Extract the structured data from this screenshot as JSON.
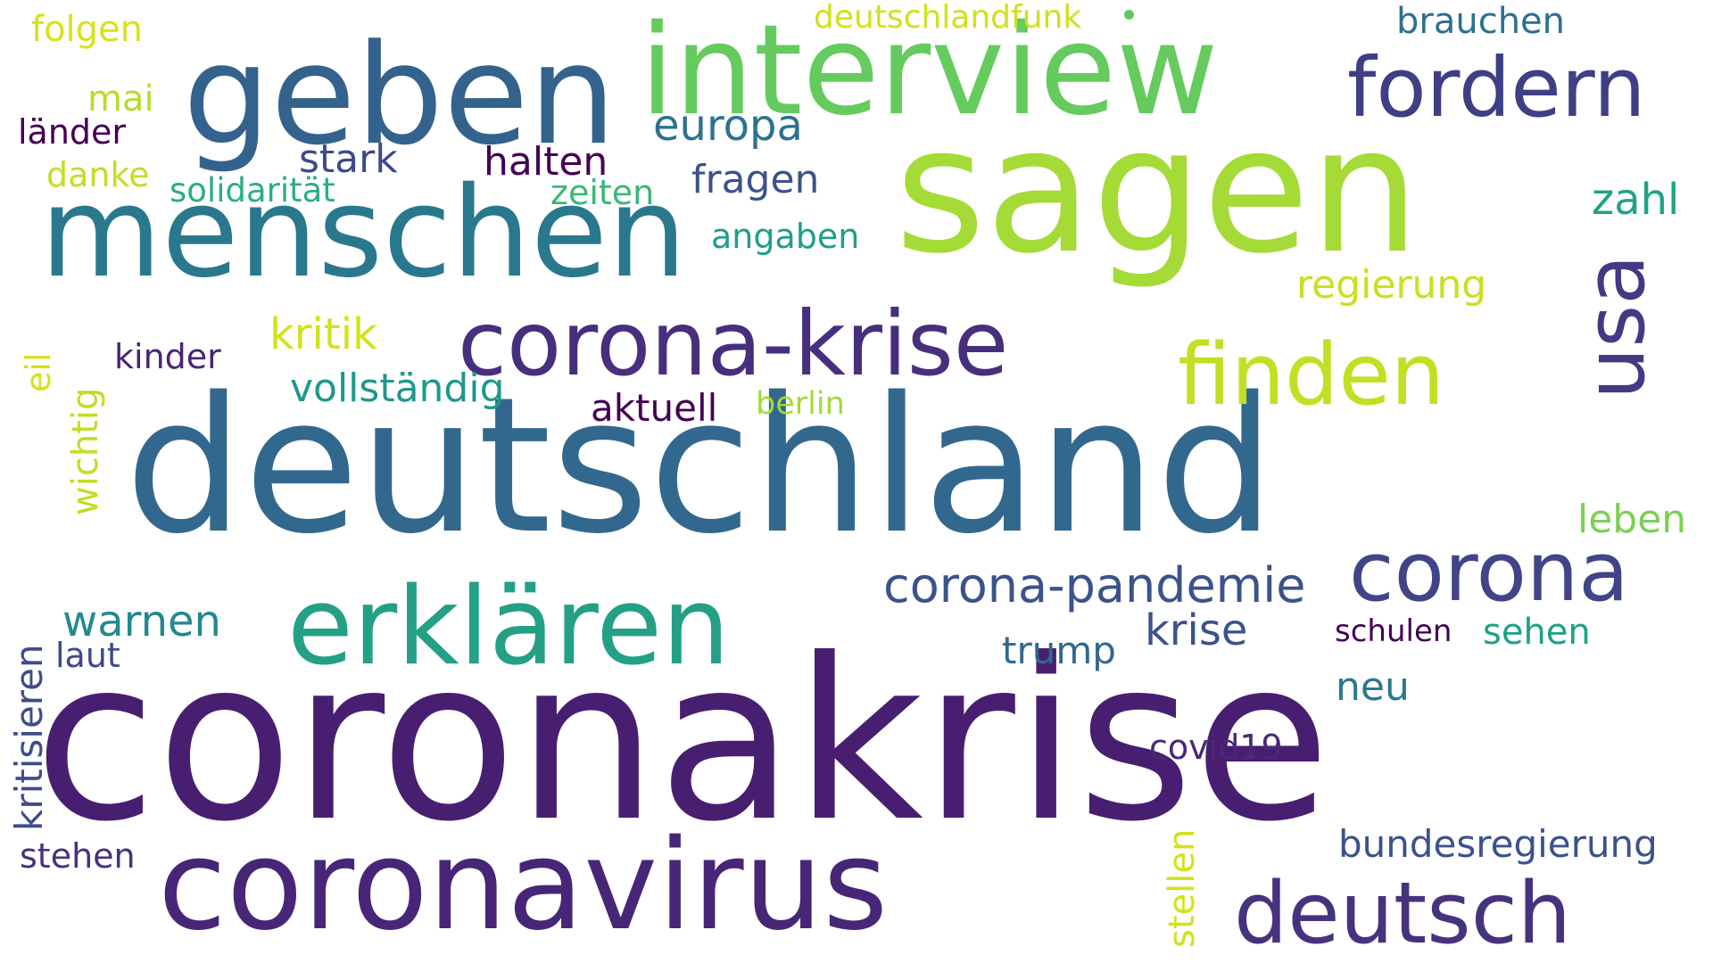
{
  "words": [
    {
      "text": "coronakrise",
      "color": "#481f70"
    },
    {
      "text": "deutschland",
      "color": "#32688e"
    },
    {
      "text": "sagen",
      "color": "#a5db36"
    },
    {
      "text": "geben",
      "color": "#33628d"
    },
    {
      "text": "interview",
      "color": "#65cb5e"
    },
    {
      "text": "menschen",
      "color": "#2a788e"
    },
    {
      "text": "coronavirus",
      "color": "#482677"
    },
    {
      "text": "erklären",
      "color": "#23a085"
    },
    {
      "text": "corona-krise",
      "color": "#472f7d"
    },
    {
      "text": "fordern",
      "color": "#3f3f84"
    },
    {
      "text": "finden",
      "color": "#c2df23"
    },
    {
      "text": "deutsch",
      "color": "#46337e"
    },
    {
      "text": "corona",
      "color": "#414487"
    },
    {
      "text": "usa",
      "color": "#443983"
    },
    {
      "text": "corona-pandemie",
      "color": "#3b528b"
    },
    {
      "text": "europa",
      "color": "#2c728e"
    },
    {
      "text": "krise",
      "color": "#3b528b"
    },
    {
      "text": "warnen",
      "color": "#23898e"
    },
    {
      "text": "regierung",
      "color": "#c8e020"
    },
    {
      "text": "kritik",
      "color": "#d2e21b"
    },
    {
      "text": "stark",
      "color": "#3e4989"
    },
    {
      "text": "halten",
      "color": "#440154"
    },
    {
      "text": "fragen",
      "color": "#3b528b"
    },
    {
      "text": "zahl",
      "color": "#20a386"
    },
    {
      "text": "vollständig",
      "color": "#1f988b"
    },
    {
      "text": "aktuell",
      "color": "#440154"
    },
    {
      "text": "leben",
      "color": "#7ad151"
    },
    {
      "text": "kinder",
      "color": "#482475"
    },
    {
      "text": "bundesregierung",
      "color": "#3b528b"
    },
    {
      "text": "brauchen",
      "color": "#2d708e"
    },
    {
      "text": "folgen",
      "color": "#d8e219"
    },
    {
      "text": "mai",
      "color": "#b5de2b"
    },
    {
      "text": "länder",
      "color": "#440154"
    },
    {
      "text": "danke",
      "color": "#c0df25"
    },
    {
      "text": "solidarität",
      "color": "#29af7f"
    },
    {
      "text": "zeiten",
      "color": "#38b977"
    },
    {
      "text": "angaben",
      "color": "#1f9e89"
    },
    {
      "text": "berlin",
      "color": "#a0da39"
    },
    {
      "text": "trump",
      "color": "#31688e"
    },
    {
      "text": "schulen",
      "color": "#440154"
    },
    {
      "text": "sehen",
      "color": "#1fa187"
    },
    {
      "text": "neu",
      "color": "#2a788e"
    },
    {
      "text": "covid19",
      "color": "#482878"
    },
    {
      "text": "laut",
      "color": "#3e4a89"
    },
    {
      "text": "stehen",
      "color": "#46327e"
    },
    {
      "text": "deutschlandfunk",
      "color": "#d0e11c"
    },
    {
      "text": "wichtig",
      "color": "#bddf26"
    },
    {
      "text": "eil",
      "color": "#d5e21a"
    },
    {
      "text": "kritisieren",
      "color": "#3e4c8a"
    },
    {
      "text": "stellen",
      "color": "#d2e21b"
    }
  ],
  "dot": {
    "color": "#5ec962"
  }
}
